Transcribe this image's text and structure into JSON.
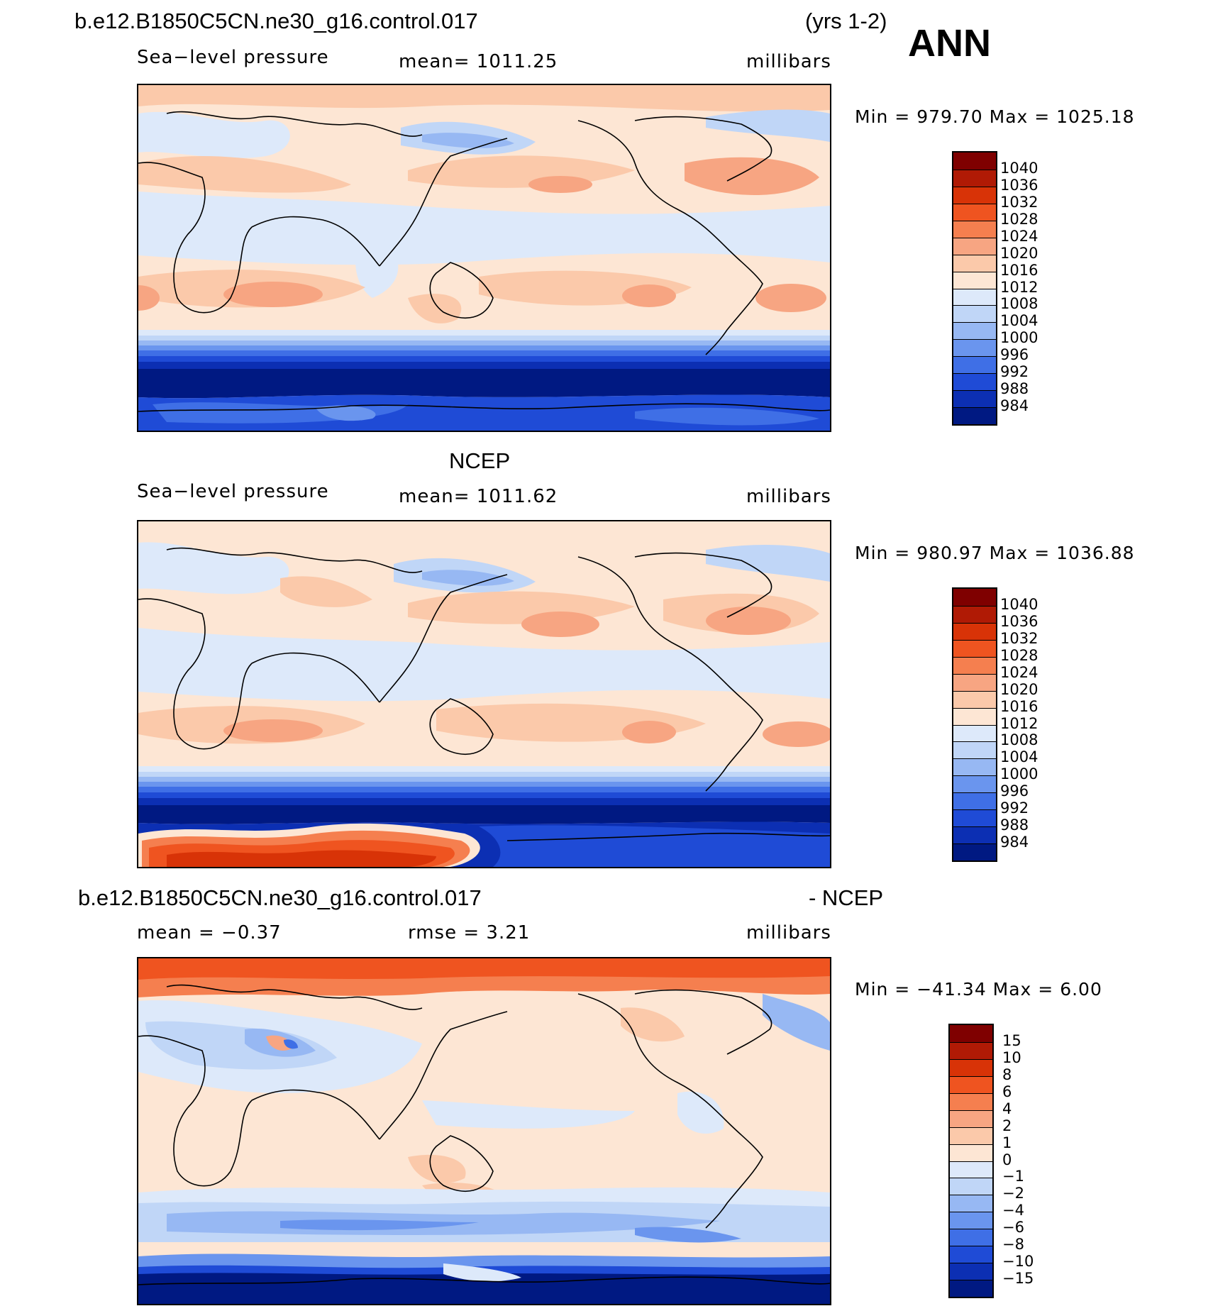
{
  "header": {
    "case_name": "b.e12.B1850C5CN.ne30_g16.control.017",
    "years": "(yrs 1-2)",
    "season": "ANN"
  },
  "panels": [
    {
      "title": "",
      "left_label": "Sea−level pressure",
      "center_label": "mean=  1011.25",
      "right_label": "millibars",
      "minmax": "Min  =  979.70  Max  =  1025.18"
    },
    {
      "title": "NCEP",
      "left_label": "Sea−level pressure",
      "center_label": "mean=  1011.62",
      "right_label": "millibars",
      "minmax": "Min  =  980.97  Max  =  1036.88"
    },
    {
      "title": "b.e12.B1850C5CN.ne30_g16.control.017",
      "title_right": "- NCEP",
      "left_label": "mean  =    −0.37",
      "center_label": "rmse  =     3.21",
      "right_label": "millibars",
      "minmax": "Min  =  −41.34  Max  =     6.00"
    }
  ],
  "colorbars": {
    "slp_levels": [
      "1040",
      "1036",
      "1032",
      "1028",
      "1024",
      "1020",
      "1016",
      "1012",
      "1008",
      "1004",
      "1000",
      "996",
      "992",
      "988",
      "984"
    ],
    "diff_levels": [
      "15",
      "10",
      "8",
      "6",
      "4",
      "2",
      "1",
      "0",
      "−1",
      "−2",
      "−4",
      "−6",
      "−8",
      "−10",
      "−15"
    ],
    "colors": [
      "#7f0000",
      "#b01a05",
      "#d83307",
      "#ef5420",
      "#f57f4f",
      "#f7a582",
      "#fbc9aa",
      "#fde6d4",
      "#dde9fa",
      "#c0d6f7",
      "#97b8f3",
      "#6a95ee",
      "#3f6fe6",
      "#1f4bd6",
      "#0c2fb3",
      "#001982"
    ]
  },
  "chart_data": [
    {
      "type": "heatmap",
      "title": "b.e12.B1850C5CN.ne30_g16.control.017 (yrs 1-2) ANN — Sea-level pressure",
      "units": "millibars",
      "mean": 1011.25,
      "min": 979.7,
      "max": 1025.18,
      "contour_levels": [
        984,
        988,
        992,
        996,
        1000,
        1004,
        1008,
        1012,
        1016,
        1020,
        1024,
        1028,
        1032,
        1036,
        1040
      ]
    },
    {
      "type": "heatmap",
      "title": "NCEP — Sea-level pressure",
      "units": "millibars",
      "mean": 1011.62,
      "min": 980.97,
      "max": 1036.88,
      "contour_levels": [
        984,
        988,
        992,
        996,
        1000,
        1004,
        1008,
        1012,
        1016,
        1020,
        1024,
        1028,
        1032,
        1036,
        1040
      ]
    },
    {
      "type": "heatmap",
      "title": "b.e12.B1850C5CN.ne30_g16.control.017 - NCEP",
      "units": "millibars",
      "mean": -0.37,
      "rmse": 3.21,
      "min": -41.34,
      "max": 6.0,
      "contour_levels": [
        -15,
        -10,
        -8,
        -6,
        -4,
        -2,
        -1,
        0,
        1,
        2,
        4,
        6,
        8,
        10,
        15
      ]
    }
  ]
}
